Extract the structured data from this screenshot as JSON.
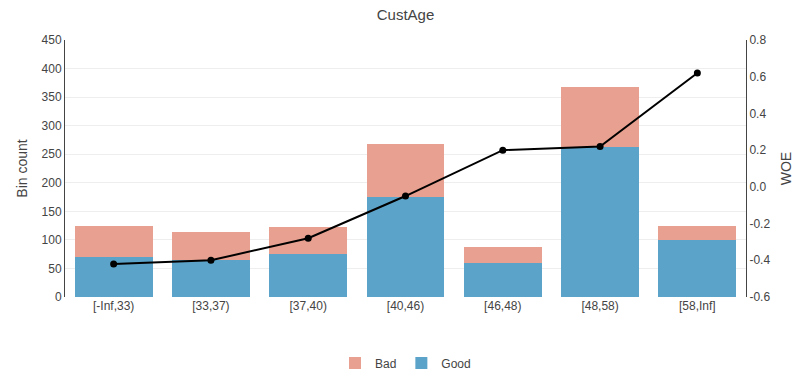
{
  "chart_data": {
    "type": "bar",
    "title": "CustAge",
    "categories": [
      "[-Inf,33)",
      "[33,37)",
      "[37,40)",
      "[40,46)",
      "[46,48)",
      "[48,58)",
      "[58,Inf]"
    ],
    "stacked": true,
    "series": [
      {
        "name": "Good",
        "color": "#5BA3C9",
        "values": [
          70,
          65,
          75,
          175,
          60,
          262,
          100
        ]
      },
      {
        "name": "Bad",
        "color": "#E8A090",
        "values": [
          55,
          48,
          47,
          93,
          27,
          105,
          24
        ]
      },
      {
        "type": "line",
        "axis": "y2",
        "color": "#000000",
        "marker": "circle",
        "values": [
          -0.42,
          -0.4,
          -0.28,
          -0.05,
          0.2,
          0.22,
          0.62
        ]
      }
    ],
    "ylabel": "Bin count",
    "y2label": "WOE",
    "ylim": [
      0,
      450
    ],
    "yticks": [
      0,
      50,
      100,
      150,
      200,
      250,
      300,
      350,
      400,
      450
    ],
    "y2lim": [
      -0.6,
      0.8
    ],
    "y2ticks": [
      -0.6,
      -0.4,
      -0.2,
      {
        "value": 0,
        "label": "0.0"
      },
      0.2,
      0.4,
      0.6,
      0.8
    ],
    "grid": true,
    "legend": "bottom"
  }
}
